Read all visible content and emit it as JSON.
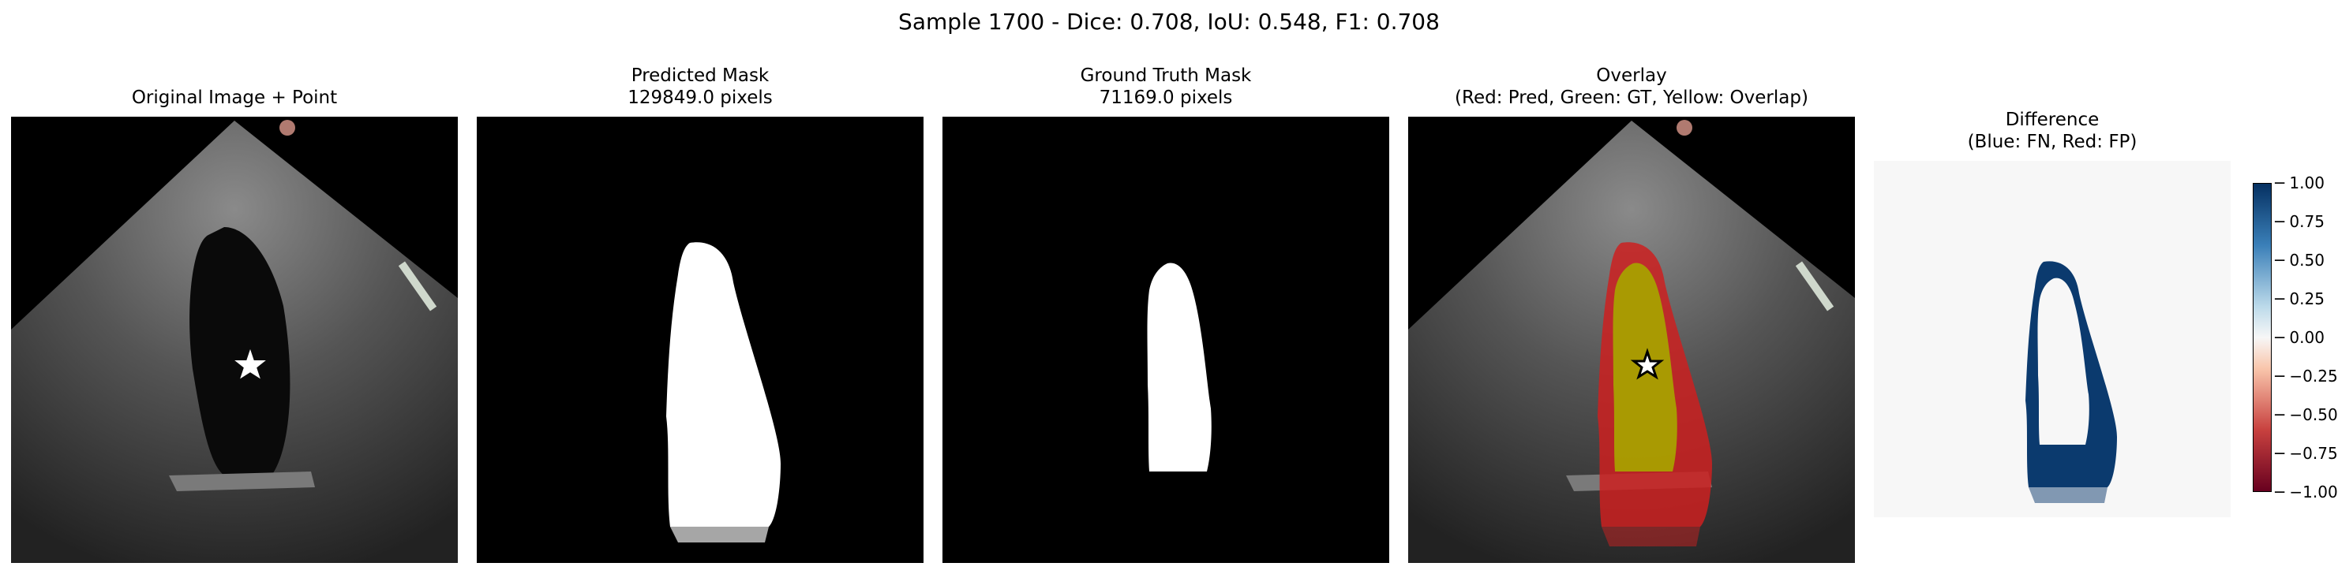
{
  "figure": {
    "suptitle": "Sample 1700 - Dice: 0.708, IoU: 0.548, F1: 0.708"
  },
  "panels": [
    {
      "title_line1": "Original Image + Point",
      "title_line2": ""
    },
    {
      "title_line1": "Predicted Mask",
      "title_line2": "129849.0 pixels"
    },
    {
      "title_line1": "Ground Truth Mask",
      "title_line2": "71169.0 pixels"
    },
    {
      "title_line1": "Overlay",
      "title_line2": "(Red: Pred, Green: GT, Yellow: Overlap)"
    },
    {
      "title_line1": "Difference",
      "title_line2": "(Blue: FN, Red: FP)"
    }
  ],
  "colorbar": {
    "ticks": [
      "1.00",
      "0.75",
      "0.50",
      "0.25",
      "0.00",
      "−0.25",
      "−0.50",
      "−0.75",
      "−1.00"
    ],
    "range": [
      -1.0,
      1.0
    ],
    "colormap": "RdBu",
    "colors": {
      "top": "#053061",
      "mid": "#f7f7f7",
      "bottom": "#67001f"
    }
  },
  "colors": {
    "prediction": "#cc2020",
    "ground_truth": "#20c020",
    "overlap": "#a8a000",
    "difference": "#0b3a6e",
    "point_marker_light": "#ffffff",
    "point_marker_dark": "#000000"
  }
}
